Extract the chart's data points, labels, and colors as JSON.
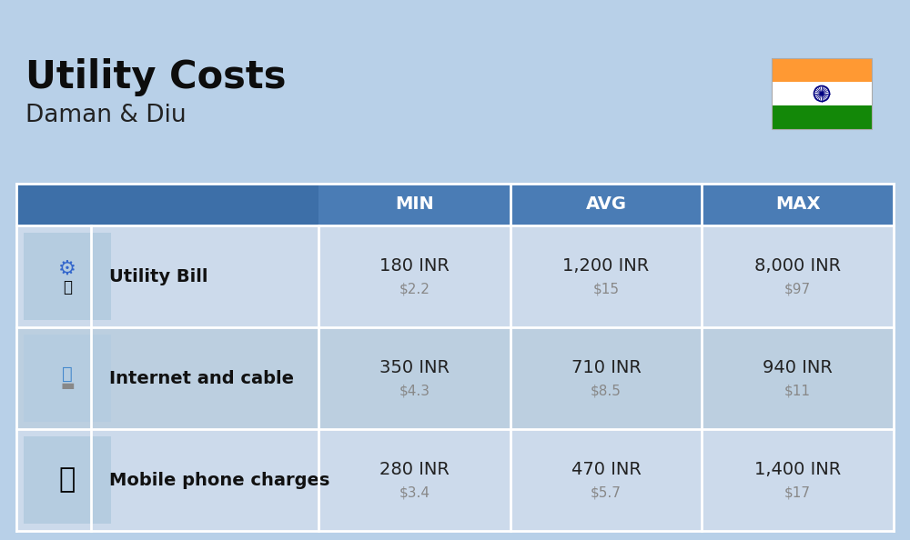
{
  "title": "Utility Costs",
  "subtitle": "Daman & Diu",
  "bg_color": "#b8d0e8",
  "table_header_bg": "#4a7cb5",
  "table_header_left_bg": "#3d6fa8",
  "row_bg_odd": "#ccdaeb",
  "row_bg_even": "#bccfe0",
  "header_text_color": "#ffffff",
  "label_text_color": "#111111",
  "value_text_color": "#222222",
  "usd_text_color": "#888888",
  "divider_color": "#ffffff",
  "col_header_labels": [
    "MIN",
    "AVG",
    "MAX"
  ],
  "rows": [
    {
      "label": "Utility Bill",
      "min_inr": "180 INR",
      "min_usd": "$2.2",
      "avg_inr": "1,200 INR",
      "avg_usd": "$15",
      "max_inr": "8,000 INR",
      "max_usd": "$97",
      "icon": "utility"
    },
    {
      "label": "Internet and cable",
      "min_inr": "350 INR",
      "min_usd": "$4.3",
      "avg_inr": "710 INR",
      "avg_usd": "$8.5",
      "max_inr": "940 INR",
      "max_usd": "$11",
      "icon": "internet"
    },
    {
      "label": "Mobile phone charges",
      "min_inr": "280 INR",
      "min_usd": "$3.4",
      "avg_inr": "470 INR",
      "avg_usd": "$5.7",
      "max_inr": "1,400 INR",
      "max_usd": "$17",
      "icon": "mobile"
    }
  ],
  "india_flag_colors": [
    "#FF9933",
    "#ffffff",
    "#138808"
  ],
  "title_fontsize": 30,
  "subtitle_fontsize": 19,
  "header_fontsize": 14,
  "label_fontsize": 14,
  "value_fontsize": 14,
  "usd_fontsize": 11
}
